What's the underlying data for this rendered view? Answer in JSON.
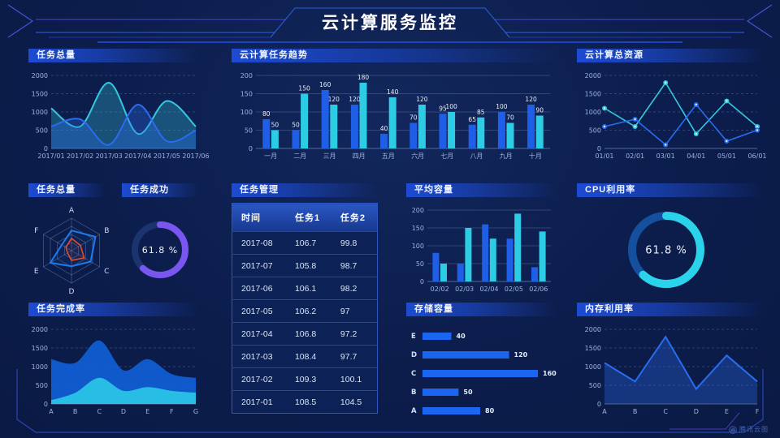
{
  "header": {
    "title": "云计算服务监控"
  },
  "watermark": {
    "label": "腾讯云图"
  },
  "panels": {
    "task_total_area": {
      "title": "任务总量"
    },
    "cloud_task_trend": {
      "title": "云计算任务趋势"
    },
    "cloud_total_resource": {
      "title": "云计算总资源"
    },
    "task_total_radar": {
      "title": "任务总量"
    },
    "task_success": {
      "title": "任务成功"
    },
    "task_table": {
      "title": "任务管理"
    },
    "avg_capacity": {
      "title": "平均容量"
    },
    "cpu_usage": {
      "title": "CPU利用率"
    },
    "task_completion": {
      "title": "任务完成率"
    },
    "storage_capacity": {
      "title": "存储容量"
    },
    "memory_usage": {
      "title": "内存利用率"
    }
  },
  "chart_data": [
    {
      "id": "task-total-trend",
      "type": "area",
      "title": "任务总量",
      "x": [
        "2017/01",
        "2017/02",
        "2017/03",
        "2017/04",
        "2017/05",
        "2017/06"
      ],
      "ylim": [
        0,
        2000
      ],
      "yticks": [
        0,
        500,
        1000,
        1500,
        2000
      ],
      "series": [
        {
          "color": "#35c8de",
          "values": [
            1100,
            600,
            1800,
            400,
            1300,
            600
          ]
        },
        {
          "color": "#2a6cf0",
          "values": [
            600,
            800,
            100,
            1200,
            200,
            500
          ]
        }
      ]
    },
    {
      "id": "cloud-task-trend",
      "type": "bar",
      "title": "云计算任务趋势",
      "categories": [
        "一月",
        "二月",
        "三月",
        "四月",
        "五月",
        "六月",
        "七月",
        "八月",
        "九月",
        "十月"
      ],
      "ylim": [
        0,
        200
      ],
      "yticks": [
        0,
        50,
        100,
        150,
        200
      ],
      "series": [
        {
          "color": "#1f5fe8",
          "values": [
            80,
            50,
            160,
            120,
            40,
            70,
            95,
            65,
            100,
            120
          ]
        },
        {
          "color": "#2bcce4",
          "values": [
            50,
            150,
            120,
            180,
            140,
            120,
            100,
            85,
            70,
            90
          ]
        }
      ]
    },
    {
      "id": "cloud-total-resource",
      "type": "line",
      "title": "云计算总资源",
      "x": [
        "01/01",
        "02/01",
        "03/01",
        "04/01",
        "05/01",
        "06/01"
      ],
      "ylim": [
        0,
        2000
      ],
      "yticks": [
        0,
        500,
        1000,
        1500,
        2000
      ],
      "series": [
        {
          "color": "#35c8de",
          "values": [
            1100,
            600,
            1800,
            400,
            1300,
            600
          ]
        },
        {
          "color": "#2a6cf0",
          "values": [
            600,
            800,
            100,
            1200,
            200,
            500
          ]
        }
      ]
    },
    {
      "id": "task-total-radar",
      "type": "radar",
      "title": "任务总量",
      "axes": [
        "A",
        "B",
        "C",
        "D",
        "E",
        "F"
      ],
      "max": 100,
      "series": [
        {
          "color": "#1e7af0",
          "values": [
            62,
            85,
            68,
            48,
            75,
            35
          ]
        },
        {
          "color": "#ef4b28",
          "values": [
            38,
            32,
            45,
            30,
            14,
            20
          ]
        }
      ]
    },
    {
      "id": "task-success-gauge",
      "type": "donut",
      "title": "任务成功",
      "value": 61.8,
      "label": "61.8 %",
      "color": "#7a56f0",
      "track": "#1b346f"
    },
    {
      "id": "task-table",
      "type": "table",
      "title": "任务管理",
      "columns": [
        "时间",
        "任务1",
        "任务2"
      ],
      "rows": [
        [
          "2017-08",
          "106.7",
          "99.8"
        ],
        [
          "2017-07",
          "105.8",
          "98.7"
        ],
        [
          "2017-06",
          "106.1",
          "98.2"
        ],
        [
          "2017-05",
          "106.2",
          "97"
        ],
        [
          "2017-04",
          "106.8",
          "97.2"
        ],
        [
          "2017-03",
          "108.4",
          "97.7"
        ],
        [
          "2017-02",
          "109.3",
          "100.1"
        ],
        [
          "2017-01",
          "108.5",
          "104.5"
        ]
      ]
    },
    {
      "id": "avg-capacity",
      "type": "bar",
      "title": "平均容量",
      "categories": [
        "02/02",
        "02/03",
        "02/04",
        "02/05",
        "02/06"
      ],
      "ylim": [
        0,
        200
      ],
      "yticks": [
        0,
        50,
        100,
        150,
        200
      ],
      "series": [
        {
          "color": "#1f5fe8",
          "values": [
            80,
            50,
            160,
            120,
            40
          ]
        },
        {
          "color": "#2bcce4",
          "values": [
            50,
            150,
            120,
            190,
            140
          ]
        }
      ]
    },
    {
      "id": "cpu-usage-gauge",
      "type": "donut",
      "title": "CPU利用率",
      "value": 61.8,
      "label": "61.8 %",
      "color": "#2bd3ea",
      "track": "#14509e"
    },
    {
      "id": "task-completion",
      "type": "area",
      "title": "任务完成率",
      "x": [
        "A",
        "B",
        "C",
        "D",
        "E",
        "F",
        "G"
      ],
      "ylim": [
        0,
        2000
      ],
      "yticks": [
        0,
        500,
        1000,
        1500,
        2000
      ],
      "series": [
        {
          "color": "#1160d8",
          "values": [
            1200,
            1100,
            1700,
            900,
            1200,
            800,
            700
          ]
        },
        {
          "color": "#2ac3e6",
          "values": [
            100,
            300,
            700,
            350,
            450,
            350,
            300
          ]
        }
      ]
    },
    {
      "id": "storage-capacity",
      "type": "hbar",
      "title": "存储容量",
      "categories": [
        "E",
        "D",
        "C",
        "B",
        "A"
      ],
      "values": [
        40,
        120,
        160,
        50,
        80
      ],
      "xmax": 160,
      "color": "#1b66f0"
    },
    {
      "id": "memory-usage",
      "type": "area",
      "title": "内存利用率",
      "x": [
        "A",
        "B",
        "C",
        "D",
        "E",
        "F"
      ],
      "ylim": [
        0,
        2000
      ],
      "yticks": [
        0,
        500,
        1000,
        1500,
        2000
      ],
      "series": [
        {
          "color": "#2a6cf0",
          "values": [
            1100,
            600,
            1800,
            400,
            1300,
            600
          ]
        }
      ]
    }
  ]
}
